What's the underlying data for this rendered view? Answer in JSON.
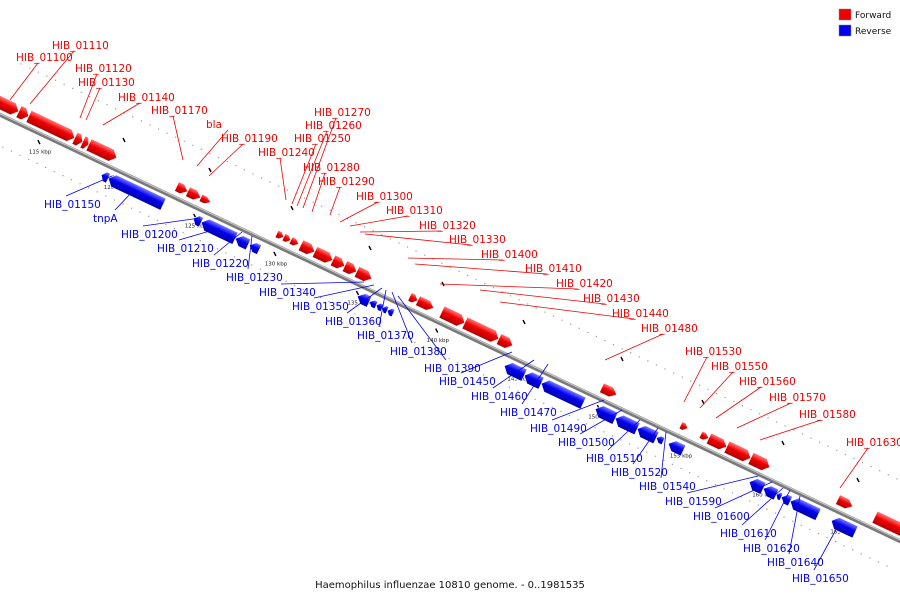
{
  "title": "Haemophilus influenzae 10810 genome. - 0..1981535",
  "legend": [
    {
      "label": "Forward",
      "color": "#ee0000"
    },
    {
      "label": "Reverse",
      "color": "#0000ee"
    }
  ],
  "colors": {
    "forward": "#ee0000",
    "reverse": "#0000ee",
    "axis": "#888888"
  },
  "ticks": [
    "115 kbp",
    "120 kbp",
    "125 kbp",
    "130 kbp",
    "135 kbp",
    "140 kbp",
    "145 kbp",
    "150 kbp",
    "155 kbp",
    "160 kbp",
    "165 kbp"
  ],
  "forward_labels": [
    "HIB_01100",
    "HIB_01110",
    "HIB_01120",
    "HIB_01130",
    "HIB_01140",
    "HIB_01170",
    "bla",
    "HIB_01190",
    "HIB_01240",
    "HIB_01250",
    "HIB_01260",
    "HIB_01270",
    "HIB_01280",
    "HIB_01290",
    "HIB_01300",
    "HIB_01310",
    "HIB_01320",
    "HIB_01330",
    "HIB_01400",
    "HIB_01410",
    "HIB_01420",
    "HIB_01430",
    "HIB_01440",
    "HIB_01480",
    "HIB_01530",
    "HIB_01550",
    "HIB_01560",
    "HIB_01570",
    "HIB_01580",
    "HIB_01630"
  ],
  "reverse_labels": [
    "HIB_01150",
    "tnpA",
    "HIB_01200",
    "HIB_01210",
    "HIB_01220",
    "HIB_01230",
    "HIB_01340",
    "HIB_01350",
    "HIB_01360",
    "HIB_01370",
    "HIB_01380",
    "HIB_01390",
    "HIB_01450",
    "HIB_01460",
    "HIB_01470",
    "HIB_01490",
    "HIB_01500",
    "HIB_01510",
    "HIB_01520",
    "HIB_01540",
    "HIB_01590",
    "HIB_01600",
    "HIB_01610",
    "HIB_01620",
    "HIB_01640",
    "HIB_01650"
  ]
}
